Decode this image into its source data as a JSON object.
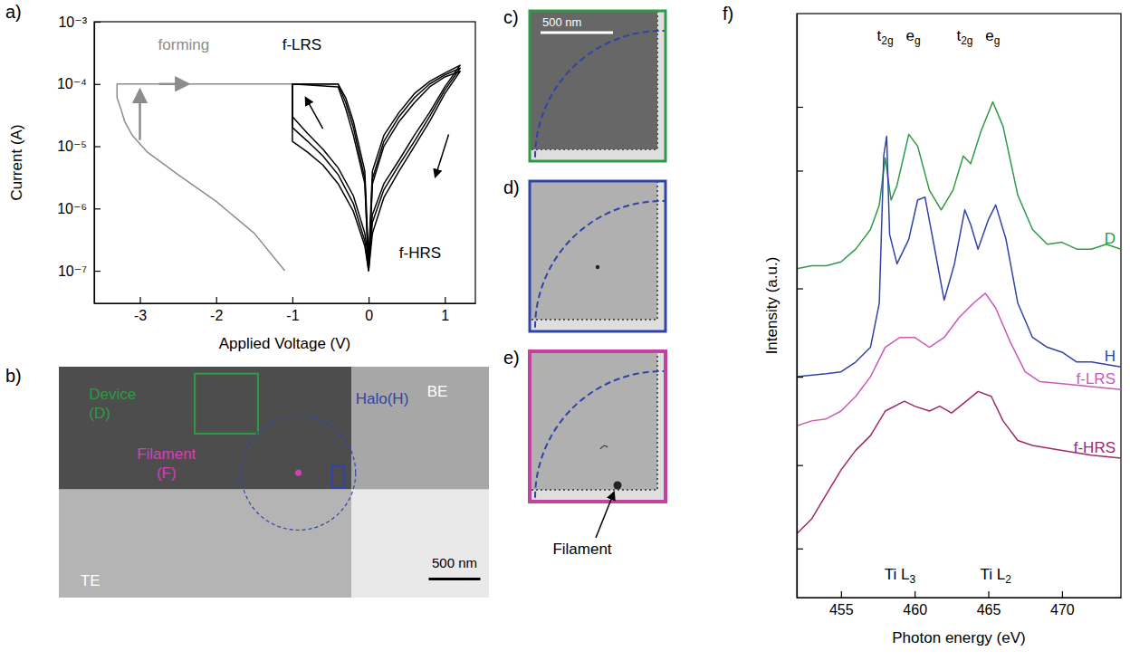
{
  "chart_data": [
    {
      "type": "line",
      "title": "a)",
      "x_label": "Applied Voltage (V)",
      "y_label": "Current (A)",
      "log": "y",
      "xlim": [
        -3.6,
        1.4
      ],
      "xticks": [
        -3,
        -2,
        -1,
        0,
        1
      ],
      "ylim": [
        3e-08,
        0.001
      ],
      "yticks": [
        {
          "value": 1e-07,
          "label": "10⁻⁷"
        },
        {
          "value": 1e-06,
          "label": "10⁻⁶"
        },
        {
          "value": 1e-05,
          "label": "10⁻⁵"
        },
        {
          "value": 0.0001,
          "label": "10⁻⁴"
        },
        {
          "value": 0.001,
          "label": "10⁻³"
        }
      ],
      "series": [
        {
          "color": "#8c8c8c",
          "x": [
            -1.1,
            -1.5,
            -2.0,
            -2.5,
            -2.9,
            -3.1,
            -3.2,
            -3.25,
            -3.3,
            -3.3,
            -2.5,
            -1.5,
            -1.0
          ],
          "values": [
            1e-07,
            4e-07,
            1.3e-06,
            3.5e-06,
            8e-06,
            1.5e-05,
            2.5e-05,
            4e-05,
            6e-05,
            0.0001,
            0.0001,
            0.0001,
            0.0001
          ]
        },
        {
          "color": "#000000",
          "x": [
            0,
            0.05,
            0.2,
            0.4,
            0.6,
            0.8,
            1.0,
            1.2,
            1.0,
            0.8,
            0.6,
            0.4,
            0.2,
            0.05,
            0,
            -0.05,
            -0.2,
            -0.3,
            -0.4,
            -1.0,
            -1.0,
            -0.8,
            -0.6,
            -0.4,
            -0.2,
            -0.05,
            0
          ],
          "values": [
            1e-07,
            6e-07,
            2e-06,
            5e-06,
            1.2e-05,
            3e-05,
            8e-05,
            0.00018,
            0.00014,
            0.0001,
            6e-05,
            3e-05,
            1.2e-05,
            3e-06,
            1e-07,
            3e-06,
            2e-05,
            5e-05,
            0.0001,
            0.0001,
            2e-05,
            1.2e-05,
            7e-06,
            3.5e-06,
            1.2e-06,
            3e-07,
            1e-07
          ]
        },
        {
          "color": "#000000",
          "x": [
            0,
            0.05,
            0.2,
            0.4,
            0.6,
            0.8,
            1.0,
            1.2,
            1.0,
            0.8,
            0.6,
            0.4,
            0.2,
            0.05,
            0,
            -0.05,
            -0.2,
            -0.3,
            -0.4,
            -1.0,
            -1.0,
            -0.8,
            -0.6,
            -0.4,
            -0.2,
            -0.05,
            0
          ],
          "values": [
            1.5e-07,
            8e-07,
            2.5e-06,
            6e-06,
            1.5e-05,
            3.5e-05,
            9e-05,
            0.0002,
            0.00015,
            0.00011,
            7e-05,
            3.5e-05,
            1.5e-05,
            4e-06,
            1.5e-07,
            4e-06,
            2.5e-05,
            6e-05,
            0.0001,
            0.0001,
            3e-05,
            1.6e-05,
            9e-06,
            4.5e-06,
            1.6e-06,
            4e-07,
            1.5e-07
          ]
        },
        {
          "color": "#000000",
          "x": [
            0,
            0.05,
            0.2,
            0.4,
            0.6,
            0.8,
            1.0,
            1.2,
            1.0,
            0.8,
            0.6,
            0.4,
            0.2,
            0.05,
            0,
            -0.05,
            -0.2,
            -0.3,
            -0.4,
            -1.0,
            -1.0,
            -0.8,
            -0.6,
            -0.4,
            -0.2,
            -0.05,
            0
          ],
          "values": [
            1e-07,
            4e-07,
            1.5e-06,
            4e-06,
            1e-05,
            2.5e-05,
            7e-05,
            0.00016,
            0.00013,
            9e-05,
            5e-05,
            2.5e-05,
            1e-05,
            2.5e-06,
            1e-07,
            2.5e-06,
            1.5e-05,
            4e-05,
            9e-05,
            0.0001,
            1.2e-05,
            8e-06,
            5e-06,
            2.5e-06,
            9e-07,
            2.5e-07,
            1e-07
          ]
        }
      ],
      "annotations": [
        {
          "text": "forming",
          "color": "#8c8c8c"
        },
        {
          "text": "f-LRS",
          "color": "#000000"
        },
        {
          "text": "f-HRS",
          "color": "#000000"
        }
      ]
    },
    {
      "type": "image",
      "title": "b)",
      "regions": [
        {
          "label": [
            "Device",
            "(D)"
          ],
          "color": "#2e9a45"
        },
        {
          "label": [
            "Halo(H)"
          ],
          "color": "#3044a8"
        },
        {
          "label": [
            "Filament",
            "(F)"
          ],
          "color": "#d63fb8"
        }
      ],
      "electrodes": [
        "BE",
        "TE"
      ],
      "scale_bar": "500 nm"
    },
    {
      "type": "image",
      "title": "c)",
      "color": "#2e9a45",
      "scale_bar": "500 nm"
    },
    {
      "type": "image",
      "title": "d)",
      "color": "#3044a8"
    },
    {
      "type": "image",
      "title": "e)",
      "color": "#c2439f",
      "annotations": [
        {
          "text": "Filament"
        }
      ]
    },
    {
      "type": "line",
      "title": "f)",
      "x_label": "Photon energy (eV)",
      "y_label": "Intensity (a.u.)",
      "tick_labels": "x",
      "xlim": [
        452,
        474
      ],
      "xticks": [
        455,
        460,
        465,
        470
      ],
      "ylim": [
        0,
        11.9
      ],
      "yticks": [
        1,
        2.7,
        4.5,
        6.3,
        8.7,
        10
      ],
      "series": [
        {
          "name": "D",
          "color": "#2e9a45",
          "x": [
            452,
            453,
            454,
            455,
            456,
            457,
            457.6,
            458,
            458.4,
            458.8,
            459.6,
            460.2,
            461,
            461.8,
            462.6,
            463.3,
            463.8,
            464.5,
            465.3,
            466,
            467,
            468,
            469,
            470,
            471,
            472,
            473,
            474
          ],
          "values": [
            6.7,
            6.76,
            6.76,
            6.84,
            7.1,
            7.5,
            8.0,
            8.96,
            8.1,
            8.4,
            9.44,
            9.2,
            8.3,
            7.9,
            8.3,
            9.0,
            8.84,
            9.5,
            10.1,
            9.6,
            8.2,
            7.5,
            7.2,
            7.24,
            7.1,
            7.1,
            7.2,
            7.1
          ]
        },
        {
          "name": "H",
          "color": "#3044a8",
          "x": [
            452,
            454,
            455,
            456,
            457,
            457.6,
            457.9,
            458.1,
            458.3,
            458.8,
            459.6,
            460.2,
            460.7,
            461.3,
            462,
            462.7,
            463.4,
            463.8,
            464.3,
            465,
            465.5,
            466.2,
            467,
            468,
            469,
            470,
            471,
            472,
            474
          ],
          "values": [
            4.5,
            4.56,
            4.6,
            4.8,
            5.1,
            6.0,
            9.0,
            9.4,
            7.4,
            6.8,
            7.3,
            8.1,
            8.16,
            7.2,
            6.06,
            6.8,
            7.9,
            7.6,
            7.1,
            7.7,
            8.0,
            7.3,
            6.0,
            5.3,
            5.1,
            5.0,
            4.8,
            4.8,
            4.7
          ]
        },
        {
          "name": "f-LRS",
          "color": "#c95bb8",
          "x": [
            452,
            453,
            454,
            455,
            456,
            457,
            458,
            459,
            460,
            461,
            462,
            463,
            464,
            464.8,
            465.5,
            466.5,
            467.5,
            468.5,
            470,
            472,
            474
          ],
          "values": [
            3.5,
            3.6,
            3.64,
            3.8,
            4.1,
            4.5,
            5.1,
            5.3,
            5.3,
            5.1,
            5.3,
            5.7,
            6.0,
            6.2,
            5.9,
            5.2,
            4.6,
            4.4,
            4.36,
            4.3,
            4.24
          ]
        },
        {
          "name": "f-HRS",
          "color": "#9e2a6a",
          "x": [
            452,
            453,
            454,
            455,
            456,
            457,
            458,
            459.3,
            460,
            461,
            461.7,
            462.5,
            463.5,
            464.3,
            465.2,
            466,
            467,
            468,
            470,
            472,
            474
          ],
          "values": [
            1.3,
            1.6,
            2.1,
            2.6,
            3.0,
            3.3,
            3.8,
            4.0,
            3.9,
            3.8,
            3.9,
            3.76,
            4.0,
            4.2,
            4.1,
            3.6,
            3.2,
            3.1,
            3.0,
            2.9,
            2.84
          ]
        }
      ],
      "peak_labels": [
        {
          "text": "t",
          "sub": "2g",
          "x": 458
        },
        {
          "text": "e",
          "sub": "g",
          "x": 459.9
        },
        {
          "text": "t",
          "sub": "2g",
          "x": 463.4
        },
        {
          "text": "e",
          "sub": "g",
          "x": 465.3
        }
      ],
      "edge_labels": [
        {
          "text": "Ti L",
          "sub": "3",
          "x": 459
        },
        {
          "text": "Ti L",
          "sub": "2",
          "x": 465.5
        }
      ]
    }
  ]
}
